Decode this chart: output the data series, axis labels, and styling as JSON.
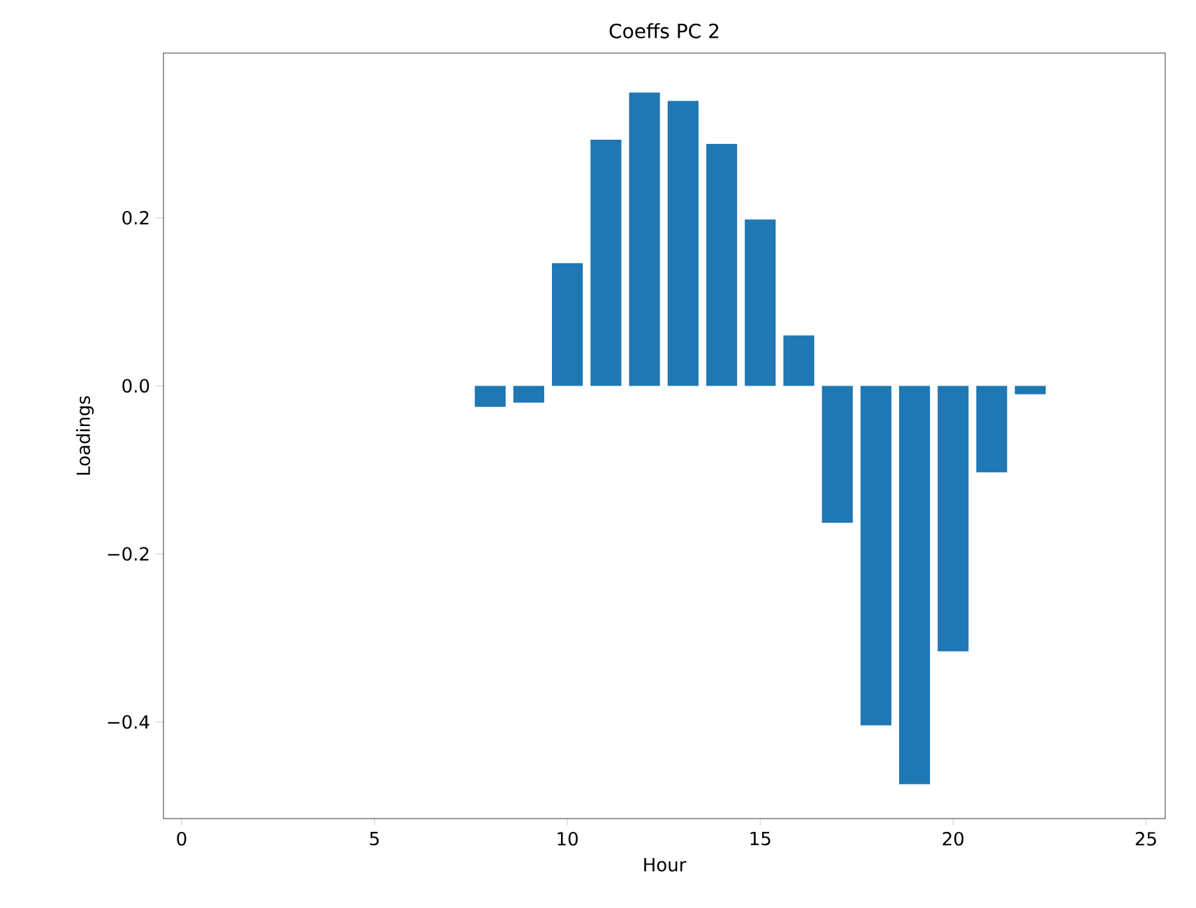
{
  "chart_data": {
    "type": "bar",
    "title": "Coeffs PC 2",
    "xlabel": "Hour",
    "ylabel": "Loadings",
    "x": [
      8,
      9,
      10,
      11,
      12,
      13,
      14,
      15,
      16,
      17,
      18,
      19,
      20,
      21,
      22
    ],
    "values": [
      -0.025,
      -0.02,
      0.146,
      0.293,
      0.349,
      0.339,
      0.288,
      0.198,
      0.06,
      -0.163,
      -0.404,
      -0.474,
      -0.316,
      -0.103,
      -0.01
    ],
    "color": "#1f77b4",
    "xlim": [
      -0.47,
      25.5
    ],
    "ylim": [
      -0.515,
      0.396
    ],
    "xticks": [
      0,
      5,
      10,
      15,
      20,
      25
    ],
    "yticks": [
      {
        "value": -0.4,
        "label": "−0.4"
      },
      {
        "value": -0.2,
        "label": "−0.2"
      },
      {
        "value": 0.0,
        "label": "0.0"
      },
      {
        "value": 0.2,
        "label": "0.2"
      }
    ],
    "grid": false
  }
}
